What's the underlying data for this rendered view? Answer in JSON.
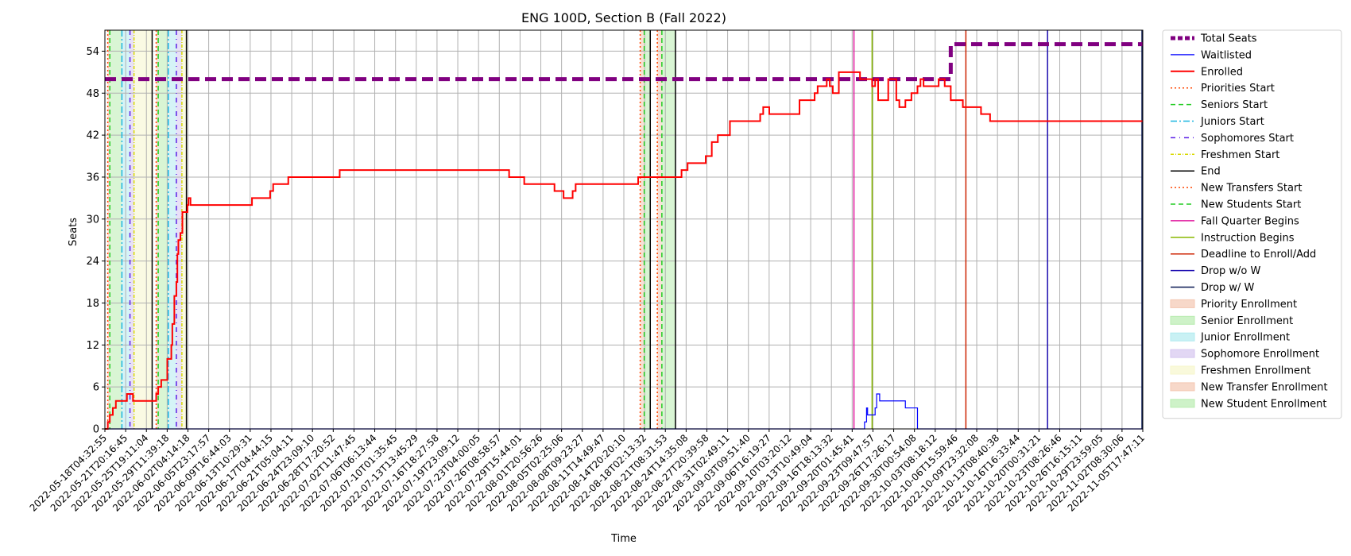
{
  "chart_data": {
    "type": "line",
    "title": "ENG 100D, Section B (Fall 2022)",
    "xlabel": "Time",
    "ylabel": "Seats",
    "ylim": [
      0,
      57
    ],
    "yticks": [
      0,
      6,
      12,
      18,
      24,
      30,
      36,
      42,
      48,
      54
    ],
    "grid": true,
    "legend_position": "outside right",
    "x_start": "2022-05-18T04:32:55",
    "x_end": "2022-11-05T17:47:11",
    "xtick_labels": [
      "2022-05-18T04:32:55",
      "2022-05-21T20:16:45",
      "2022-05-25T19:11:04",
      "2022-05-29T11:39:18",
      "2022-06-02T04:14:18",
      "2022-06-05T23:17:57",
      "2022-06-09T16:44:03",
      "2022-06-13T10:29:31",
      "2022-06-17T04:44:15",
      "2022-06-21T05:04:11",
      "2022-06-24T23:09:10",
      "2022-06-28T17:20:52",
      "2022-07-02T11:47:45",
      "2022-07-06T06:13:44",
      "2022-07-10T01:35:45",
      "2022-07-13T13:45:29",
      "2022-07-16T18:27:58",
      "2022-07-19T23:09:12",
      "2022-07-23T04:00:05",
      "2022-07-26T08:58:57",
      "2022-07-29T15:44:01",
      "2022-08-01T20:56:26",
      "2022-08-05T02:25:06",
      "2022-08-08T09:23:27",
      "2022-08-11T14:49:47",
      "2022-08-14T20:20:10",
      "2022-08-18T02:13:32",
      "2022-08-21T08:31:53",
      "2022-08-24T14:35:08",
      "2022-08-27T20:39:58",
      "2022-08-31T02:49:11",
      "2022-09-03T09:51:40",
      "2022-09-06T16:19:27",
      "2022-09-10T03:20:12",
      "2022-09-13T10:49:04",
      "2022-09-16T18:13:32",
      "2022-09-20T01:45:41",
      "2022-09-23T09:47:57",
      "2022-09-26T17:26:17",
      "2022-09-30T00:54:08",
      "2022-10-03T08:18:12",
      "2022-10-06T15:59:46",
      "2022-10-09T23:32:08",
      "2022-10-13T08:40:38",
      "2022-10-16T16:33:44",
      "2022-10-20T00:31:21",
      "2022-10-23T08:26:46",
      "2022-10-26T16:15:11",
      "2022-10-29T23:59:05",
      "2022-11-02T08:30:06",
      "2022-11-05T17:47:11"
    ],
    "shaded_periods": [
      {
        "name": "Priority Enrollment",
        "color": "#f4c7b2",
        "start": "2022-05-18T16:00:00",
        "end": "2022-05-19T00:00:00"
      },
      {
        "name": "Senior Enrollment",
        "color": "#b9ecb0",
        "start": "2022-05-19T00:00:00",
        "end": "2022-05-21T00:00:00"
      },
      {
        "name": "Junior Enrollment",
        "color": "#b2ebf0",
        "start": "2022-05-21T00:00:00",
        "end": "2022-05-22T08:00:00"
      },
      {
        "name": "Sophomore Enrollment",
        "color": "#d6c6f0",
        "start": "2022-05-22T08:00:00",
        "end": "2022-05-23T00:00:00"
      },
      {
        "name": "Freshmen Enrollment",
        "color": "#f6f6cc",
        "start": "2022-05-23T00:00:00",
        "end": "2022-05-26T00:00:00"
      },
      {
        "name": "Priority Enrollment",
        "color": "#f4c7b2",
        "start": "2022-05-26T16:00:00",
        "end": "2022-05-27T00:00:00"
      },
      {
        "name": "Senior Enrollment",
        "color": "#b9ecb0",
        "start": "2022-05-27T00:00:00",
        "end": "2022-05-28T16:00:00"
      },
      {
        "name": "Junior Enrollment",
        "color": "#b2ebf0",
        "start": "2022-05-28T16:00:00",
        "end": "2022-05-30T00:00:00"
      },
      {
        "name": "Sophomore Enrollment",
        "color": "#d6c6f0",
        "start": "2022-05-30T00:00:00",
        "end": "2022-05-30T22:00:00"
      },
      {
        "name": "Freshmen Enrollment",
        "color": "#f6f6cc",
        "start": "2022-05-30T22:00:00",
        "end": "2022-05-31T16:00:00"
      },
      {
        "name": "New Transfer Enrollment",
        "color": "#f4c7b2",
        "start": "2022-08-14T16:00:00",
        "end": "2022-08-15T08:00:00"
      },
      {
        "name": "New Student Enrollment",
        "color": "#b9ecb0",
        "start": "2022-08-15T08:00:00",
        "end": "2022-08-16T08:00:00"
      },
      {
        "name": "New Transfer Enrollment",
        "color": "#f4c7b2",
        "start": "2022-08-17T12:00:00",
        "end": "2022-08-18T06:00:00"
      },
      {
        "name": "New Student Enrollment",
        "color": "#b9ecb0",
        "start": "2022-08-18T06:00:00",
        "end": "2022-08-20T12:00:00"
      }
    ],
    "vertical_events": [
      {
        "name": "Priorities Start",
        "color": "#ff4500",
        "dash": "2,3",
        "x": "2022-05-18T16:00:00"
      },
      {
        "name": "Seniors Start",
        "color": "#22cc22",
        "dash": "6,4",
        "x": "2022-05-19T00:00:00"
      },
      {
        "name": "Juniors Start",
        "color": "#1ab6e0",
        "dash": "8,3,2,3",
        "x": "2022-05-21T00:00:00"
      },
      {
        "name": "Sophomores Start",
        "color": "#5a1ee6",
        "dash": "6,5,1,5",
        "x": "2022-05-22T08:00:00"
      },
      {
        "name": "Freshmen Start",
        "color": "#d8d800",
        "dash": "4,2,1,2",
        "x": "2022-05-23T00:00:00"
      },
      {
        "name": "End",
        "color": "#000000",
        "dash": "",
        "x": "2022-05-26T00:00:00"
      },
      {
        "name": "Priorities Start",
        "color": "#ff4500",
        "dash": "2,3",
        "x": "2022-05-26T16:00:00"
      },
      {
        "name": "Seniors Start",
        "color": "#22cc22",
        "dash": "6,4",
        "x": "2022-05-27T00:00:00"
      },
      {
        "name": "Juniors Start",
        "color": "#1ab6e0",
        "dash": "8,3,2,3",
        "x": "2022-05-28T16:00:00"
      },
      {
        "name": "Sophomores Start",
        "color": "#5a1ee6",
        "dash": "6,5,1,5",
        "x": "2022-05-30T00:00:00"
      },
      {
        "name": "Freshmen Start",
        "color": "#d8d800",
        "dash": "4,2,1,2",
        "x": "2022-05-30T22:00:00"
      },
      {
        "name": "End",
        "color": "#000000",
        "dash": "",
        "x": "2022-05-31T16:00:00"
      },
      {
        "name": "New Transfers Start",
        "color": "#ff4500",
        "dash": "2,3",
        "x": "2022-08-14T16:00:00"
      },
      {
        "name": "New Students Start",
        "color": "#22cc22",
        "dash": "6,4",
        "x": "2022-08-15T08:00:00"
      },
      {
        "name": "End",
        "color": "#000000",
        "dash": "",
        "x": "2022-08-16T08:00:00"
      },
      {
        "name": "New Transfers Start",
        "color": "#ff4500",
        "dash": "2,3",
        "x": "2022-08-17T12:00:00"
      },
      {
        "name": "New Students Start",
        "color": "#22cc22",
        "dash": "6,4",
        "x": "2022-08-18T06:00:00"
      },
      {
        "name": "End",
        "color": "#000000",
        "dash": "",
        "x": "2022-08-20T12:00:00"
      },
      {
        "name": "Fall Quarter Begins",
        "color": "#e0199e",
        "dash": "",
        "x": "2022-09-19T00:00:00"
      },
      {
        "name": "Instruction Begins",
        "color": "#88b800",
        "dash": "",
        "x": "2022-09-22T00:00:00"
      },
      {
        "name": "Deadline to Enroll/Add",
        "color": "#cc2200",
        "dash": "",
        "x": "2022-10-07T12:00:00"
      },
      {
        "name": "Drop w/o W",
        "color": "#1a0ab0",
        "dash": "",
        "x": "2022-10-21T00:00:00"
      },
      {
        "name": "Drop w/ W",
        "color": "#0a1a55",
        "dash": "",
        "x": "2022-11-05T17:47:11"
      }
    ],
    "series": [
      {
        "name": "Total Seats",
        "color": "#800080",
        "width": 5,
        "dash": "14,7",
        "step": true,
        "points": [
          [
            "2022-05-18T04:32:55",
            50
          ],
          [
            "2022-10-04T12:00:00",
            50
          ],
          [
            "2022-10-05T00:00:00",
            55
          ],
          [
            "2022-11-05T17:47:11",
            55
          ]
        ]
      },
      {
        "name": "Waitlisted",
        "color": "#0000ff",
        "width": 1.2,
        "dash": "",
        "step": true,
        "points": [
          [
            "2022-05-18T04:32:55",
            0
          ],
          [
            "2022-09-20T12:00:00",
            0
          ],
          [
            "2022-09-20T18:00:00",
            1
          ],
          [
            "2022-09-21T02:00:00",
            3
          ],
          [
            "2022-09-21T06:00:00",
            2
          ],
          [
            "2022-09-22T12:00:00",
            3
          ],
          [
            "2022-09-22T18:00:00",
            5
          ],
          [
            "2022-09-23T06:00:00",
            4
          ],
          [
            "2022-09-27T12:00:00",
            3
          ],
          [
            "2022-09-29T12:00:00",
            0
          ],
          [
            "2022-11-05T17:47:11",
            0
          ]
        ]
      },
      {
        "name": "Enrolled",
        "color": "#ff0000",
        "width": 2,
        "dash": "",
        "step": true,
        "points": [
          [
            "2022-05-18T04:32:55",
            0
          ],
          [
            "2022-05-18T16:00:00",
            1
          ],
          [
            "2022-05-19T00:00:00",
            2
          ],
          [
            "2022-05-19T12:00:00",
            3
          ],
          [
            "2022-05-20T00:00:00",
            4
          ],
          [
            "2022-05-21T20:00:00",
            5
          ],
          [
            "2022-05-22T20:00:00",
            4
          ],
          [
            "2022-05-26T16:00:00",
            5
          ],
          [
            "2022-05-27T00:00:00",
            6
          ],
          [
            "2022-05-27T12:00:00",
            7
          ],
          [
            "2022-05-28T12:00:00",
            10
          ],
          [
            "2022-05-29T04:00:00",
            12
          ],
          [
            "2022-05-29T08:00:00",
            15
          ],
          [
            "2022-05-29T16:00:00",
            19
          ],
          [
            "2022-05-30T00:00:00",
            21
          ],
          [
            "2022-05-30T04:00:00",
            25
          ],
          [
            "2022-05-30T08:00:00",
            27
          ],
          [
            "2022-05-30T16:00:00",
            28
          ],
          [
            "2022-05-31T00:00:00",
            31
          ],
          [
            "2022-05-31T20:00:00",
            32
          ],
          [
            "2022-06-01T00:00:00",
            33
          ],
          [
            "2022-06-01T08:00:00",
            32
          ],
          [
            "2022-06-11T12:00:00",
            33
          ],
          [
            "2022-06-14T12:00:00",
            34
          ],
          [
            "2022-06-15T00:00:00",
            35
          ],
          [
            "2022-06-17T12:00:00",
            36
          ],
          [
            "2022-06-26T00:00:00",
            37
          ],
          [
            "2022-07-24T00:00:00",
            36
          ],
          [
            "2022-07-26T12:00:00",
            35
          ],
          [
            "2022-07-31T12:00:00",
            34
          ],
          [
            "2022-08-02T00:00:00",
            33
          ],
          [
            "2022-08-03T12:00:00",
            34
          ],
          [
            "2022-08-04T00:00:00",
            35
          ],
          [
            "2022-08-14T08:00:00",
            36
          ],
          [
            "2022-08-21T12:00:00",
            37
          ],
          [
            "2022-08-22T12:00:00",
            38
          ],
          [
            "2022-08-25T12:00:00",
            39
          ],
          [
            "2022-08-26T12:00:00",
            41
          ],
          [
            "2022-08-27T12:00:00",
            42
          ],
          [
            "2022-08-29T12:00:00",
            44
          ],
          [
            "2022-09-03T12:00:00",
            45
          ],
          [
            "2022-09-04T00:00:00",
            46
          ],
          [
            "2022-09-05T00:00:00",
            45
          ],
          [
            "2022-09-10T00:00:00",
            47
          ],
          [
            "2022-09-12T12:00:00",
            48
          ],
          [
            "2022-09-13T00:00:00",
            49
          ],
          [
            "2022-09-14T12:00:00",
            50
          ],
          [
            "2022-09-15T00:00:00",
            49
          ],
          [
            "2022-09-15T12:00:00",
            48
          ],
          [
            "2022-09-16T12:00:00",
            51
          ],
          [
            "2022-09-20T00:00:00",
            50
          ],
          [
            "2022-09-22T00:00:00",
            49
          ],
          [
            "2022-09-22T12:00:00",
            50
          ],
          [
            "2022-09-23T00:00:00",
            47
          ],
          [
            "2022-09-24T16:00:00",
            50
          ],
          [
            "2022-09-26T00:00:00",
            47
          ],
          [
            "2022-09-26T12:00:00",
            46
          ],
          [
            "2022-09-27T12:00:00",
            47
          ],
          [
            "2022-09-28T12:00:00",
            48
          ],
          [
            "2022-09-29T12:00:00",
            49
          ],
          [
            "2022-09-30T00:00:00",
            50
          ],
          [
            "2022-09-30T12:00:00",
            49
          ],
          [
            "2022-10-03T00:00:00",
            50
          ],
          [
            "2022-10-04T00:00:00",
            49
          ],
          [
            "2022-10-05T00:00:00",
            47
          ],
          [
            "2022-10-07T00:00:00",
            46
          ],
          [
            "2022-10-10T00:00:00",
            45
          ],
          [
            "2022-10-11T12:00:00",
            44
          ],
          [
            "2022-11-05T17:47:11",
            44
          ]
        ]
      }
    ],
    "legend": [
      {
        "label": "Total Seats",
        "kind": "line",
        "color": "#800080",
        "width": 5,
        "dash": "6,3"
      },
      {
        "label": "Waitlisted",
        "kind": "line",
        "color": "#0000ff",
        "width": 1.2,
        "dash": ""
      },
      {
        "label": "Enrolled",
        "kind": "line",
        "color": "#ff0000",
        "width": 2,
        "dash": ""
      },
      {
        "label": "Priorities Start",
        "kind": "line",
        "color": "#ff4500",
        "width": 1.5,
        "dash": "2,3"
      },
      {
        "label": "Seniors Start",
        "kind": "line",
        "color": "#22cc22",
        "width": 1.5,
        "dash": "6,4"
      },
      {
        "label": "Juniors Start",
        "kind": "line",
        "color": "#1ab6e0",
        "width": 1.5,
        "dash": "8,3,2,3"
      },
      {
        "label": "Sophomores Start",
        "kind": "line",
        "color": "#5a1ee6",
        "width": 1.5,
        "dash": "6,5,1,5"
      },
      {
        "label": "Freshmen Start",
        "kind": "line",
        "color": "#d8d800",
        "width": 1.5,
        "dash": "4,2,1,2"
      },
      {
        "label": "End",
        "kind": "line",
        "color": "#000000",
        "width": 1.5,
        "dash": ""
      },
      {
        "label": "New Transfers Start",
        "kind": "line",
        "color": "#ff4500",
        "width": 1.5,
        "dash": "2,3"
      },
      {
        "label": "New Students Start",
        "kind": "line",
        "color": "#22cc22",
        "width": 1.5,
        "dash": "6,4"
      },
      {
        "label": "Fall Quarter Begins",
        "kind": "line",
        "color": "#e0199e",
        "width": 1.5,
        "dash": ""
      },
      {
        "label": "Instruction Begins",
        "kind": "line",
        "color": "#88b800",
        "width": 1.5,
        "dash": ""
      },
      {
        "label": "Deadline to Enroll/Add",
        "kind": "line",
        "color": "#cc2200",
        "width": 1.5,
        "dash": ""
      },
      {
        "label": "Drop w/o W",
        "kind": "line",
        "color": "#1a0ab0",
        "width": 1.5,
        "dash": ""
      },
      {
        "label": "Drop w/ W",
        "kind": "line",
        "color": "#0a1a55",
        "width": 1.5,
        "dash": ""
      },
      {
        "label": "Priority Enrollment",
        "kind": "patch",
        "color": "#f4c7b2"
      },
      {
        "label": "Senior Enrollment",
        "kind": "patch",
        "color": "#b9ecb0"
      },
      {
        "label": "Junior Enrollment",
        "kind": "patch",
        "color": "#b2ebf0"
      },
      {
        "label": "Sophomore Enrollment",
        "kind": "patch",
        "color": "#d6c6f0"
      },
      {
        "label": "Freshmen Enrollment",
        "kind": "patch",
        "color": "#f6f6cc"
      },
      {
        "label": "New Transfer Enrollment",
        "kind": "patch",
        "color": "#f4c7b2"
      },
      {
        "label": "New Student Enrollment",
        "kind": "patch",
        "color": "#b9ecb0"
      }
    ]
  }
}
